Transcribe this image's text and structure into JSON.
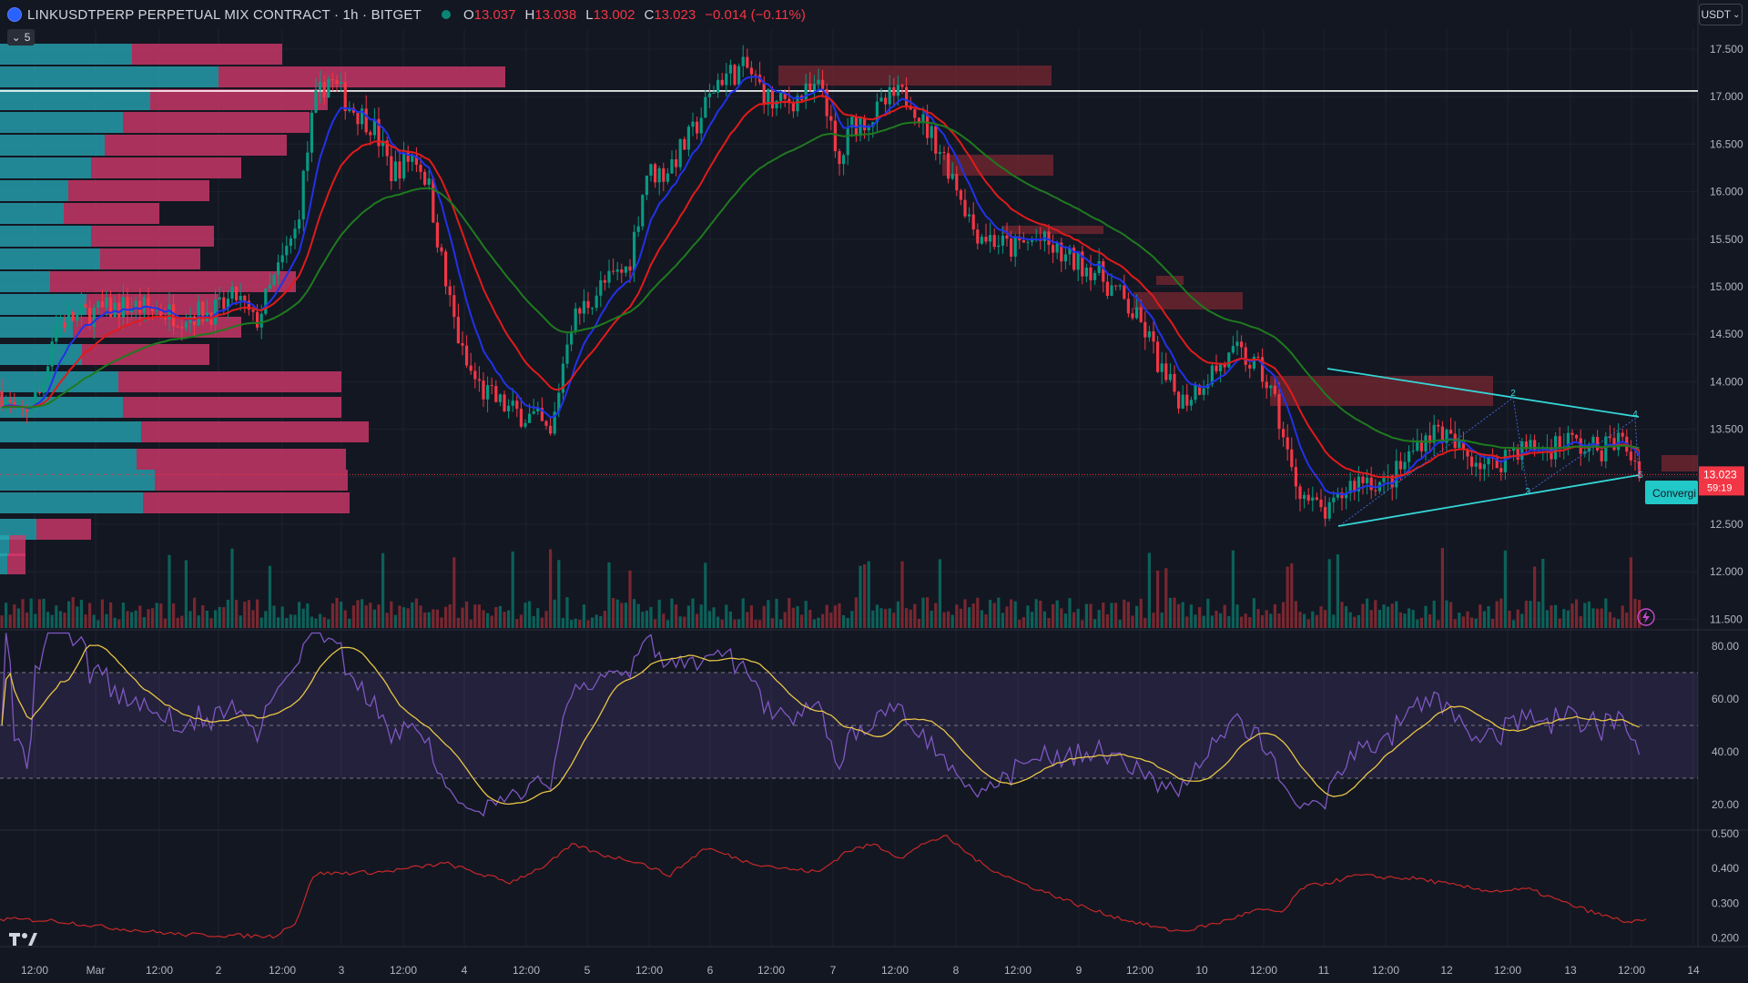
{
  "header": {
    "title": "LINKUSDTPERP PERPETUAL MIX CONTRACT · 1h · BITGET",
    "ohlc": [
      {
        "k": "O",
        "v": "13.037"
      },
      {
        "k": "H",
        "v": "13.038"
      },
      {
        "k": "L",
        "v": "13.002"
      },
      {
        "k": "C",
        "v": "13.023"
      },
      {
        "k": "",
        "v": "−0.014 (−0.11%)"
      }
    ],
    "collapse_label": "5",
    "currency": "USDT"
  },
  "price_axis": {
    "labels": [
      "17.500",
      "17.000",
      "16.500",
      "16.000",
      "15.500",
      "15.000",
      "14.500",
      "14.000",
      "13.500",
      "13.000",
      "12.500",
      "12.000",
      "11.500"
    ],
    "values": [
      17.5,
      17.0,
      16.5,
      16.0,
      15.5,
      15.0,
      14.5,
      14.0,
      13.5,
      13.0,
      12.5,
      12.0,
      11.5
    ],
    "last_price": "13.023",
    "countdown": "59:19",
    "horizontal_line": 17.06
  },
  "rsi_axis": {
    "labels": [
      "80.00",
      "60.00",
      "40.00",
      "20.00"
    ],
    "values": [
      80,
      60,
      40,
      20
    ]
  },
  "lower_axis": {
    "labels": [
      "0.500",
      "0.400",
      "0.300",
      "0.200"
    ],
    "values": [
      0.5,
      0.4,
      0.3,
      0.2
    ]
  },
  "time_axis": {
    "labels": [
      "12:00",
      "Mar",
      "12:00",
      "2",
      "12:00",
      "3",
      "12:00",
      "4",
      "12:00",
      "5",
      "12:00",
      "6",
      "12:00",
      "7",
      "12:00",
      "8",
      "12:00",
      "9",
      "12:00",
      "10",
      "12:00",
      "11",
      "12:00",
      "12",
      "12:00",
      "13",
      "12:00",
      "14"
    ]
  },
  "pattern": {
    "label": "Convergi",
    "points": [
      "2",
      "3",
      "4",
      "5"
    ]
  },
  "colors": {
    "bg": "#131722",
    "up": "#089981",
    "down": "#f23645",
    "ema_blue": "#2132e8",
    "ema_red": "#e01b1b",
    "ema_green": "#1f7a1f",
    "rsi_line": "#7e57c2",
    "rsi_ma": "#e8c547",
    "vp_up": "#26a6b5",
    "vp_down": "#d5396c",
    "trendline": "#35d6d6"
  },
  "icons": {
    "symbol": "bitget-logo-icon",
    "status": "market-open-dot-icon",
    "collapse": "chevron-down-icon",
    "lightning": "lightning-icon",
    "brand": "tradingview-logo-icon"
  }
}
